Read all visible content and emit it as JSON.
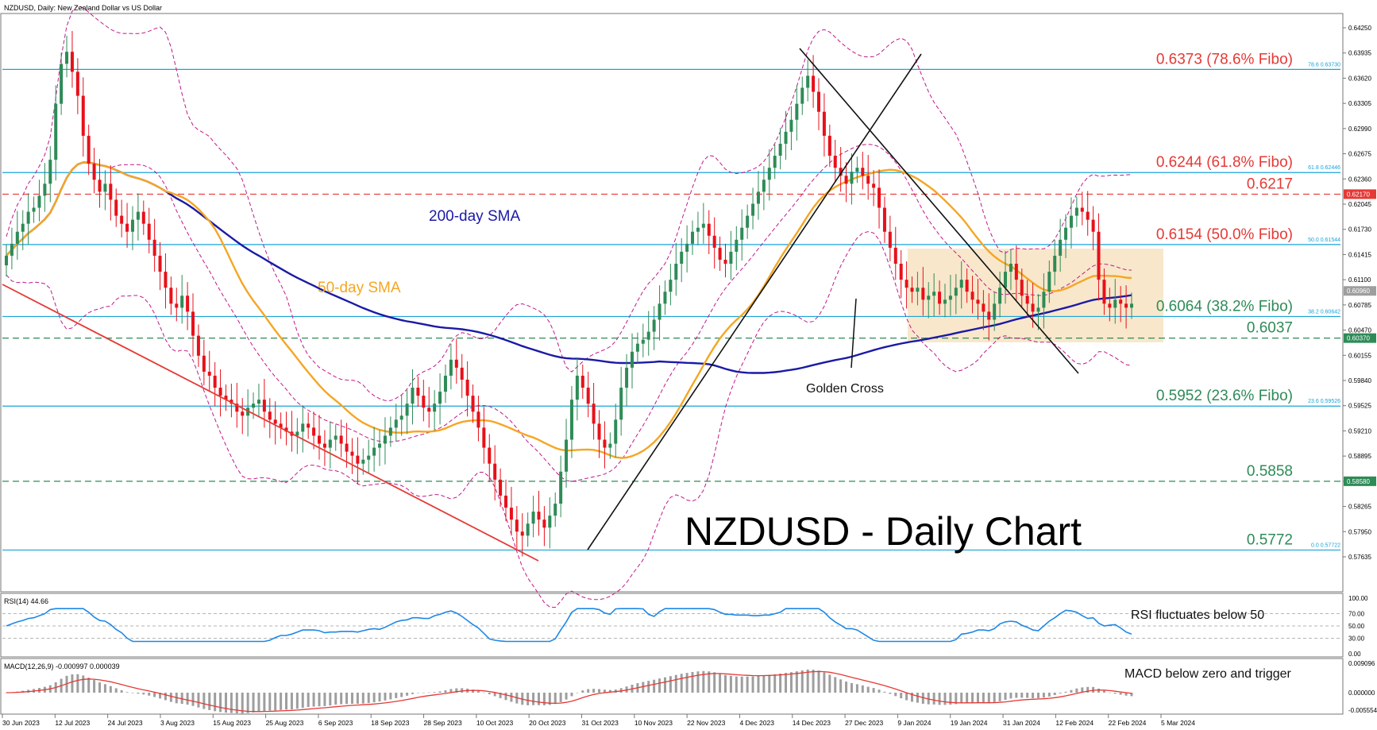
{
  "header": {
    "symbol_line": "NZDUSD, Daily:  New Zealand Dollar vs US Dollar"
  },
  "colors": {
    "bull_candle": "#2e8b57",
    "bear_candle": "#e8101a",
    "sma200": "#1a1aa6",
    "sma50": "#f5a623",
    "bollinger": "#c2188b",
    "fibo_line": "#1aa3d9",
    "trendline_red": "#e53935",
    "trendline_black": "#111111",
    "range_box": "#f7e3c2",
    "rsi_line": "#1e88e5",
    "macd_hist": "#9e9e9e",
    "macd_signal": "#e53935",
    "label_red": "#e53935",
    "label_green": "#2e8b57",
    "label_blue": "#1a1aa6",
    "label_orange": "#f5a623",
    "title_black": "#000000"
  },
  "chart_data": [
    {
      "type": "candlestick",
      "panel": "price",
      "title": "NZDUSD - Daily Chart",
      "ylim": [
        0.575,
        0.644
      ],
      "yticks": [
        "0.64250",
        "0.63935",
        "0.63620",
        "0.63305",
        "0.62990",
        "0.62675",
        "0.62360",
        "0.62045",
        "0.61730",
        "0.61415",
        "0.61100",
        "0.60785",
        "0.60470",
        "0.60155",
        "0.59840",
        "0.59525",
        "0.59210",
        "0.58895",
        "0.58580",
        "0.58265",
        "0.57950",
        "0.57635"
      ],
      "price_axis_tags": [
        {
          "text": "0.62170",
          "value": 0.6217,
          "color": "#e53935"
        },
        {
          "text": "0.60960",
          "value": 0.6096,
          "color": "#9e9e9e"
        },
        {
          "text": "0.60370",
          "value": 0.6037,
          "color": "#2e8b57"
        },
        {
          "text": "0.58580",
          "value": 0.5858,
          "color": "#2e8b57"
        }
      ],
      "xticks": [
        "30 Jun 2023",
        "12 Jul 2023",
        "24 Jul 2023",
        "3 Aug 2023",
        "15 Aug 2023",
        "25 Aug 2023",
        "6 Sep 2023",
        "18 Sep 2023",
        "28 Sep 2023",
        "10 Oct 2023",
        "20 Oct 2023",
        "31 Oct 2023",
        "10 Nov 2023",
        "22 Nov 2023",
        "4 Dec 2023",
        "14 Dec 2023",
        "27 Dec 2023",
        "9 Jan 2024",
        "19 Jan 2024",
        "31 Jan 2024",
        "12 Feb 2024",
        "22 Feb 2024",
        "5 Mar 2024"
      ],
      "horizontal_levels": [
        {
          "value": 0.6373,
          "label": "0.6373 (78.6% Fibo)",
          "tag": "78.6 0.63730",
          "style": "solid",
          "color": "#1aa3d9",
          "label_color": "#e53935"
        },
        {
          "value": 0.6244,
          "label": "0.6244 (61.8% Fibo)",
          "tag": "61.8 0.62446",
          "style": "solid",
          "color": "#1aa3d9",
          "label_color": "#e53935"
        },
        {
          "value": 0.6217,
          "label": "0.6217",
          "tag": "",
          "style": "dashed",
          "color": "#e53935",
          "label_color": "#e53935"
        },
        {
          "value": 0.6154,
          "label": "0.6154 (50.0% Fibo)",
          "tag": "50.0 0.61544",
          "style": "solid",
          "color": "#1aa3d9",
          "label_color": "#e53935"
        },
        {
          "value": 0.6064,
          "label": "0.6064 (38.2% Fibo)",
          "tag": "38.2 0.60642",
          "style": "solid",
          "color": "#1aa3d9",
          "label_color": "#2e8b57"
        },
        {
          "value": 0.6037,
          "label": "0.6037",
          "tag": "",
          "style": "dashed",
          "color": "#2e8b57",
          "label_color": "#2e8b57"
        },
        {
          "value": 0.5952,
          "label": "0.5952 (23.6% Fibo)",
          "tag": "23.6 0.59526",
          "style": "solid",
          "color": "#1aa3d9",
          "label_color": "#2e8b57"
        },
        {
          "value": 0.5858,
          "label": "0.5858",
          "tag": "",
          "style": "dashed",
          "color": "#2e8b57",
          "label_color": "#2e8b57"
        },
        {
          "value": 0.5772,
          "label": "0.5772",
          "tag": "0.0 0.57722",
          "style": "solid",
          "color": "#1aa3d9",
          "label_color": "#2e8b57"
        }
      ],
      "annotations": {
        "sma200_label": "200-day SMA",
        "sma50_label": "50-day SMA",
        "golden_cross_label": "Golden Cross"
      },
      "candles_close": [
        0.614,
        0.6155,
        0.617,
        0.618,
        0.6195,
        0.62,
        0.6215,
        0.623,
        0.626,
        0.633,
        0.638,
        0.6395,
        0.637,
        0.634,
        0.629,
        0.6255,
        0.6235,
        0.622,
        0.623,
        0.621,
        0.619,
        0.618,
        0.617,
        0.6185,
        0.6195,
        0.618,
        0.616,
        0.614,
        0.612,
        0.61,
        0.608,
        0.6075,
        0.609,
        0.607,
        0.604,
        0.6015,
        0.5995,
        0.599,
        0.5975,
        0.5965,
        0.596,
        0.5955,
        0.5945,
        0.594,
        0.595,
        0.5955,
        0.596,
        0.5945,
        0.5935,
        0.593,
        0.5925,
        0.592,
        0.5915,
        0.592,
        0.593,
        0.5925,
        0.5915,
        0.5905,
        0.59,
        0.591,
        0.5915,
        0.5905,
        0.5895,
        0.589,
        0.588,
        0.5885,
        0.589,
        0.59,
        0.5905,
        0.5915,
        0.5925,
        0.5935,
        0.594,
        0.5955,
        0.5975,
        0.5965,
        0.595,
        0.5945,
        0.5955,
        0.597,
        0.599,
        0.601,
        0.6,
        0.5985,
        0.5965,
        0.5945,
        0.5925,
        0.59,
        0.588,
        0.586,
        0.584,
        0.5825,
        0.581,
        0.5795,
        0.579,
        0.5805,
        0.582,
        0.581,
        0.58,
        0.5815,
        0.583,
        0.587,
        0.591,
        0.596,
        0.599,
        0.5975,
        0.5955,
        0.593,
        0.591,
        0.59,
        0.5905,
        0.5935,
        0.5975,
        0.6,
        0.602,
        0.603,
        0.6035,
        0.6045,
        0.606,
        0.608,
        0.6095,
        0.611,
        0.613,
        0.6145,
        0.6155,
        0.617,
        0.6175,
        0.618,
        0.6165,
        0.615,
        0.6135,
        0.613,
        0.6145,
        0.616,
        0.6175,
        0.619,
        0.6205,
        0.622,
        0.6235,
        0.625,
        0.6265,
        0.628,
        0.6295,
        0.631,
        0.633,
        0.635,
        0.6365,
        0.6345,
        0.632,
        0.629,
        0.6265,
        0.625,
        0.624,
        0.623,
        0.6245,
        0.625,
        0.624,
        0.623,
        0.6225,
        0.62,
        0.617,
        0.615,
        0.613,
        0.611,
        0.61,
        0.6095,
        0.61,
        0.6085,
        0.609,
        0.6095,
        0.608,
        0.6085,
        0.609,
        0.61,
        0.611,
        0.6095,
        0.6085,
        0.608,
        0.607,
        0.606,
        0.608,
        0.61,
        0.612,
        0.613,
        0.611,
        0.609,
        0.608,
        0.607,
        0.6075,
        0.6095,
        0.612,
        0.614,
        0.616,
        0.6175,
        0.619,
        0.62,
        0.6195,
        0.6185,
        0.617,
        0.611,
        0.608,
        0.6075,
        0.6085,
        0.608,
        0.6075,
        0.608
      ]
    },
    {
      "type": "line",
      "panel": "rsi",
      "title": "RSI(14) 44.66",
      "note": "RSI fluctuates below 50",
      "yticks": [
        "100.00",
        "70.00",
        "50.00",
        "30.00",
        "0.00"
      ],
      "ylim": [
        0,
        100
      ]
    },
    {
      "type": "bar",
      "panel": "macd",
      "title": "MACD(12,26,9) -0.000997 0.000039",
      "note": "MACD below zero and trigger",
      "yticks": [
        "0.009096",
        "0.000000",
        "-0.005554"
      ],
      "ylim": [
        -0.005554,
        0.009096
      ]
    }
  ]
}
